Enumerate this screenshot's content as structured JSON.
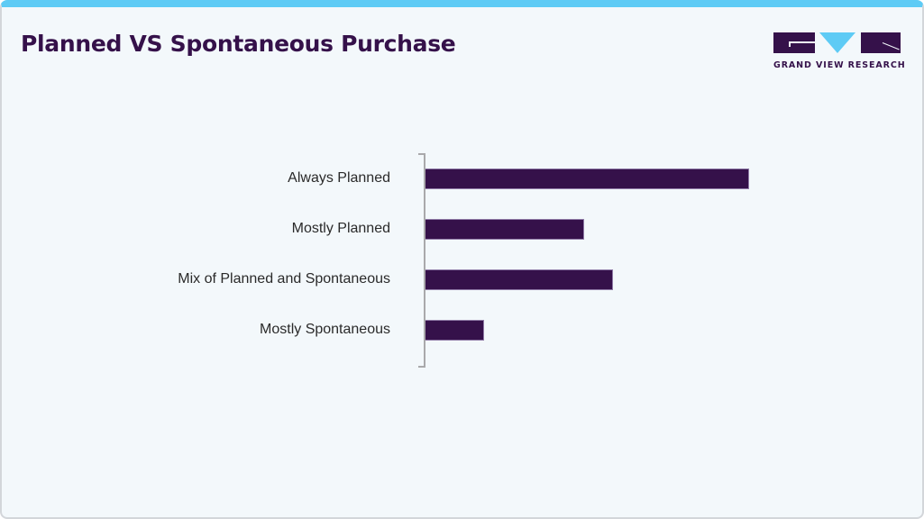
{
  "header": {
    "title": "Planned VS Spontaneous Purchase",
    "logo_text": "GRAND VIEW RESEARCH"
  },
  "colors": {
    "accent_top": "#5ecbf5",
    "bar": "#35114a",
    "title": "#35114a",
    "background": "#f3f8fb"
  },
  "chart_data": {
    "type": "bar",
    "orientation": "horizontal",
    "title": "Planned VS Spontaneous Purchase",
    "xlabel": "",
    "ylabel": "",
    "categories": [
      "Always Planned",
      "Mostly Planned",
      "Mix of Planned and Spontaneous",
      "Mostly Spontaneous"
    ],
    "values": [
      100,
      49,
      58,
      18
    ],
    "value_note": "Relative bar lengths (no numeric axis shown); longest bar normalized to 100",
    "bar_color": "#35114a",
    "grid": false,
    "legend": null
  }
}
